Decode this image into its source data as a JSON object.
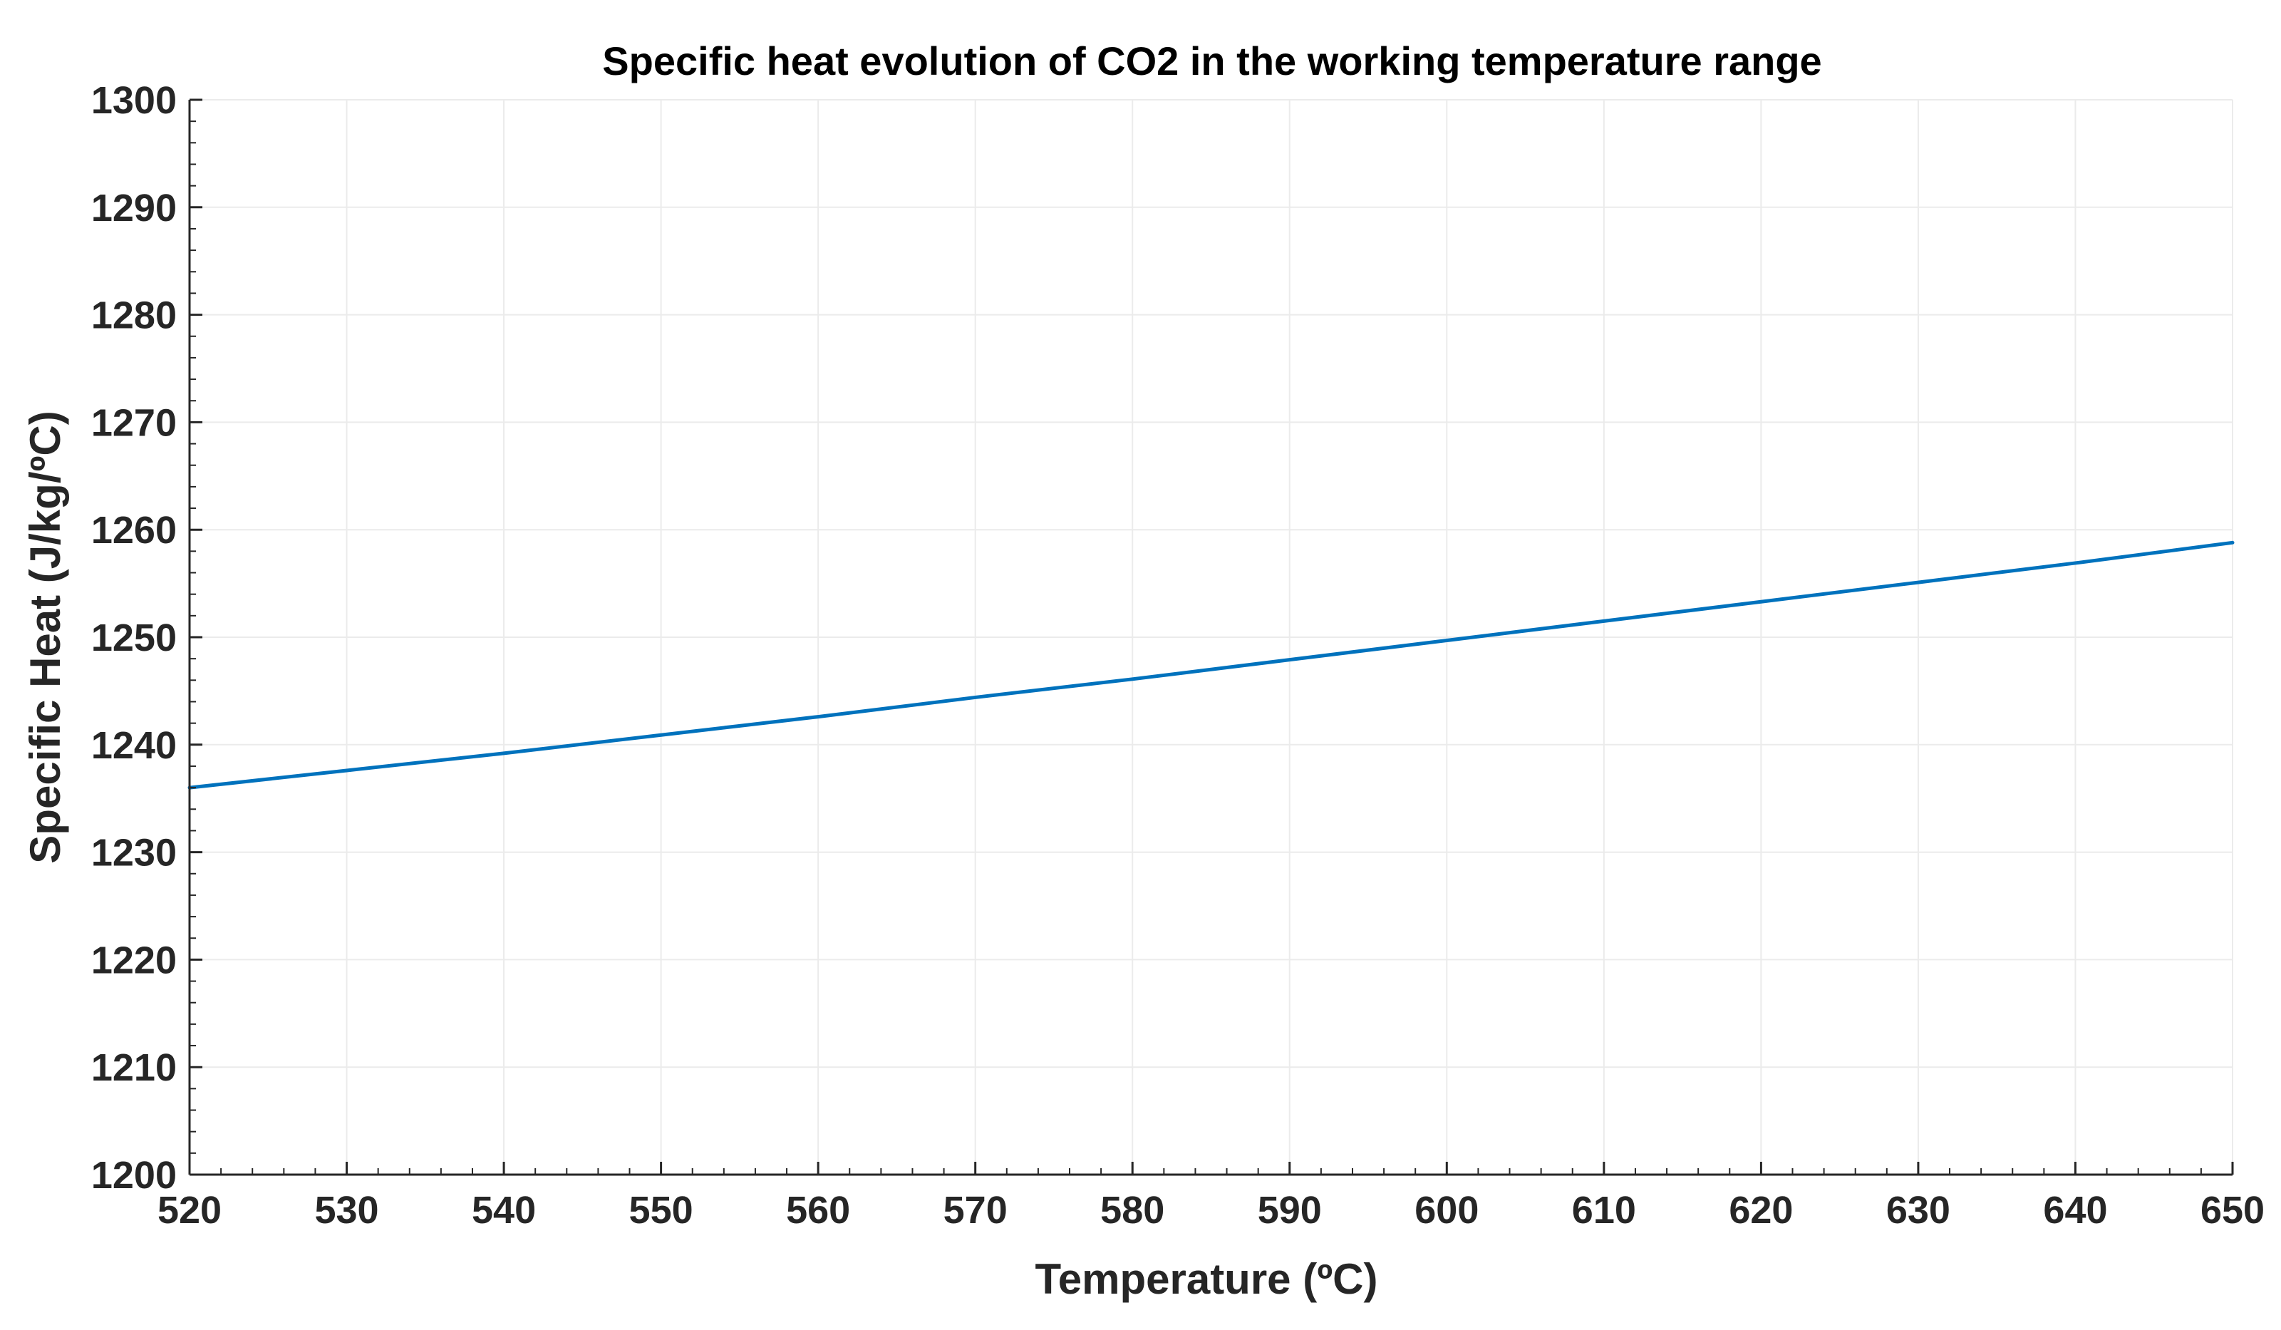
{
  "chart_data": {
    "type": "line",
    "title": "Specific heat evolution of CO2 in the working temperature range",
    "xlabel": "Temperature (ºC)",
    "ylabel": "Specific Heat (J/kg/ºC)",
    "xlim": [
      520,
      650
    ],
    "ylim": [
      1200,
      1300
    ],
    "xticks": [
      520,
      530,
      540,
      550,
      560,
      570,
      580,
      590,
      600,
      610,
      620,
      630,
      640,
      650
    ],
    "yticks": [
      1200,
      1210,
      1220,
      1230,
      1240,
      1250,
      1260,
      1270,
      1280,
      1290,
      1300
    ],
    "x_minor_step": 2,
    "y_minor_step": 2,
    "grid": true,
    "series": [
      {
        "name": "Specific heat",
        "color": "#0072BD",
        "x": [
          520,
          530,
          540,
          550,
          560,
          570,
          580,
          590,
          600,
          610,
          620,
          630,
          640,
          650
        ],
        "y": [
          1236.0,
          1237.6,
          1239.2,
          1240.9,
          1242.6,
          1244.4,
          1246.1,
          1247.9,
          1249.7,
          1251.5,
          1253.3,
          1255.1,
          1256.9,
          1258.8
        ]
      }
    ]
  }
}
